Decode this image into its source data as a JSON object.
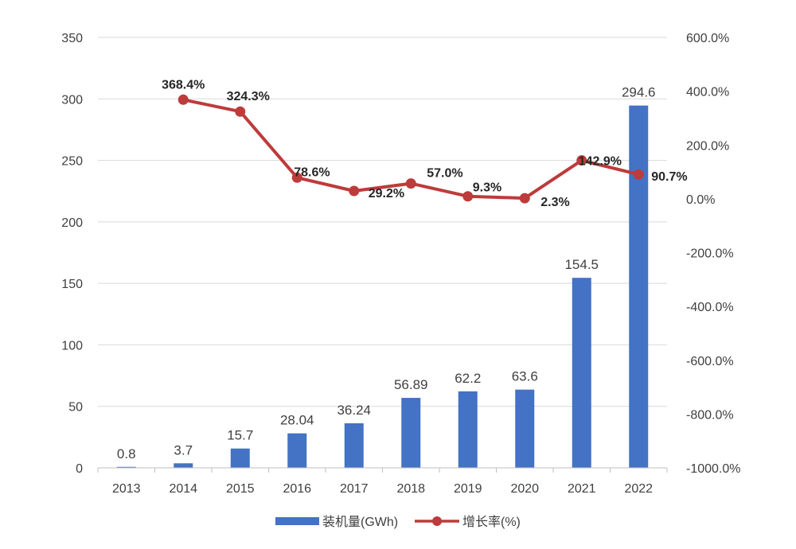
{
  "chart_data": {
    "type": "bar",
    "categories": [
      "2013",
      "2014",
      "2015",
      "2016",
      "2017",
      "2018",
      "2019",
      "2020",
      "2021",
      "2022"
    ],
    "series": [
      {
        "name": "装机量(GWh)",
        "type": "bar",
        "axis": "left",
        "values": [
          0.8,
          3.7,
          15.7,
          28.04,
          36.24,
          56.89,
          62.2,
          63.6,
          154.5,
          294.6
        ],
        "labels": [
          "0.8",
          "3.7",
          "15.7",
          "28.04",
          "36.24",
          "56.89",
          "62.2",
          "63.6",
          "154.5",
          "294.6"
        ],
        "color": "#4472C4"
      },
      {
        "name": "增长率(%)",
        "type": "line",
        "axis": "right",
        "values": [
          null,
          368.4,
          324.3,
          78.6,
          29.2,
          57.0,
          9.3,
          2.3,
          142.9,
          90.7
        ],
        "labels": [
          "",
          "368.4%",
          "324.3%",
          "78.6%",
          "29.2%",
          "57.0%",
          "9.3%",
          "2.3%",
          "142.9%",
          "90.7%"
        ],
        "color": "#BE3B3B"
      }
    ],
    "y_left": {
      "min": 0,
      "max": 350,
      "ticks": [
        "0",
        "50",
        "100",
        "150",
        "200",
        "250",
        "300",
        "350"
      ]
    },
    "y_right": {
      "min": -1000,
      "max": 600,
      "ticks": [
        "-1000.0%",
        "-800.0%",
        "-600.0%",
        "-400.0%",
        "-200.0%",
        "0.0%",
        "200.0%",
        "400.0%",
        "600.0%"
      ]
    },
    "grid": true,
    "legend": "bottom-center",
    "title": "",
    "xlabel": "",
    "ylabel": ""
  }
}
